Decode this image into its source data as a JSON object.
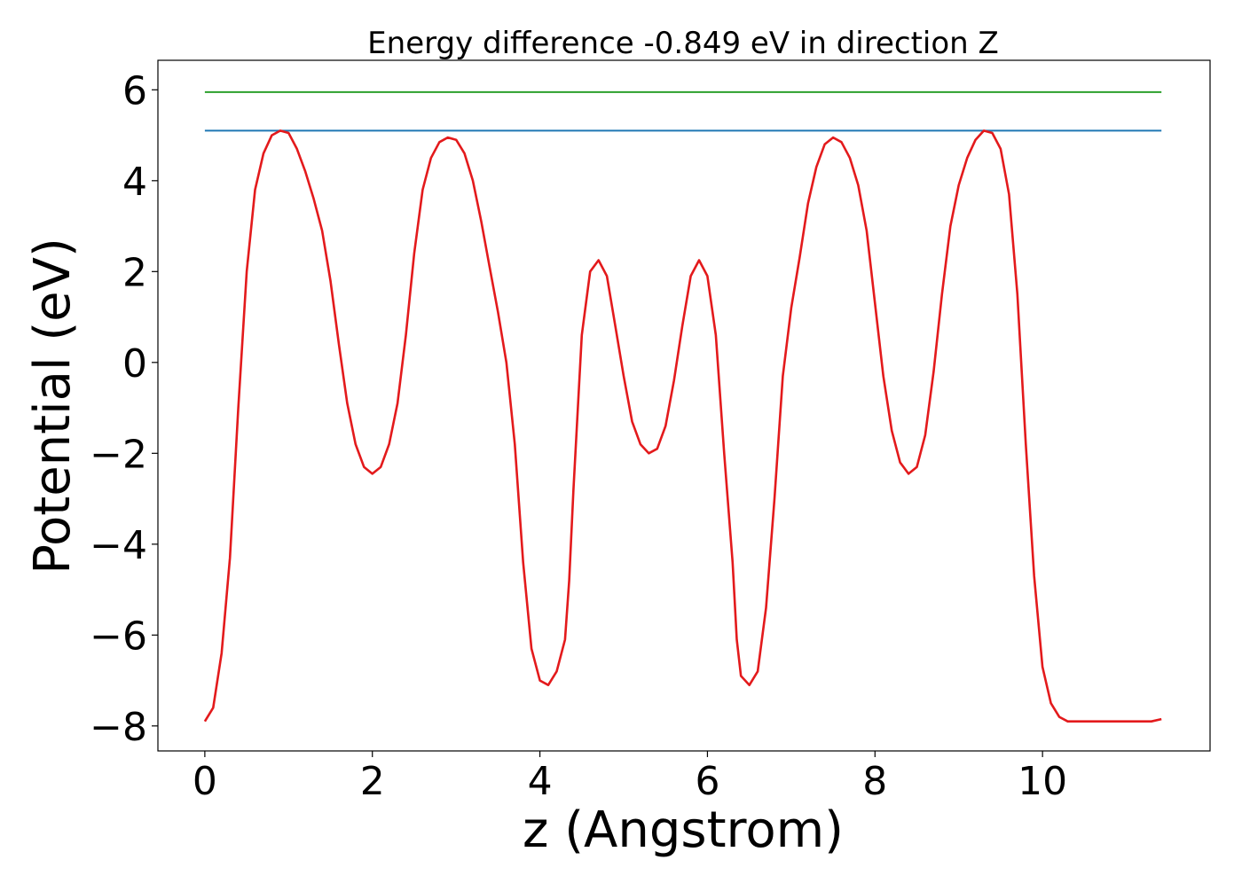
{
  "chart_data": {
    "type": "line",
    "title": "Energy difference -0.849 eV in direction Z",
    "xlabel": "z (Angstrom)",
    "ylabel": "Potential (eV)",
    "xlim": [
      -0.56,
      12.0
    ],
    "ylim": [
      -8.55,
      6.65
    ],
    "xticks": [
      0,
      2,
      4,
      6,
      8,
      10
    ],
    "yticks": [
      6,
      4,
      2,
      0,
      -2,
      -4,
      -6,
      -8
    ],
    "xtick_labels": [
      "0",
      "2",
      "4",
      "6",
      "8",
      "10"
    ],
    "ytick_labels": [
      "6",
      "4",
      "2",
      "0",
      "−2",
      "−4",
      "−6",
      "−8"
    ],
    "grid": false,
    "legend": "none",
    "series": [
      {
        "color": "#2ca02c",
        "x": [
          0.0,
          11.42
        ],
        "y": [
          5.95,
          5.95
        ]
      },
      {
        "color": "#1f77b4",
        "x": [
          0.0,
          11.42
        ],
        "y": [
          5.1,
          5.1
        ]
      },
      {
        "color": "#e31a1c",
        "x": [
          0.0,
          0.1,
          0.2,
          0.3,
          0.4,
          0.5,
          0.6,
          0.7,
          0.8,
          0.9,
          1.0,
          1.1,
          1.2,
          1.3,
          1.4,
          1.5,
          1.6,
          1.7,
          1.8,
          1.9,
          2.0,
          2.1,
          2.2,
          2.3,
          2.4,
          2.5,
          2.6,
          2.7,
          2.8,
          2.9,
          3.0,
          3.1,
          3.2,
          3.3,
          3.4,
          3.5,
          3.6,
          3.7,
          3.8,
          3.9,
          4.0,
          4.1,
          4.2,
          4.3,
          4.35,
          4.4,
          4.5,
          4.6,
          4.7,
          4.8,
          4.9,
          5.0,
          5.1,
          5.2,
          5.3,
          5.4,
          5.5,
          5.6,
          5.7,
          5.8,
          5.9,
          6.0,
          6.1,
          6.2,
          6.3,
          6.35,
          6.4,
          6.5,
          6.6,
          6.7,
          6.8,
          6.9,
          7.0,
          7.1,
          7.2,
          7.3,
          7.4,
          7.5,
          7.6,
          7.7,
          7.8,
          7.9,
          8.0,
          8.1,
          8.2,
          8.3,
          8.4,
          8.5,
          8.6,
          8.7,
          8.8,
          8.9,
          9.0,
          9.1,
          9.2,
          9.3,
          9.4,
          9.5,
          9.6,
          9.7,
          9.8,
          9.9,
          10.0,
          10.1,
          10.2,
          10.3,
          10.4,
          10.5,
          10.6,
          10.7,
          10.8,
          10.9,
          11.0,
          11.1,
          11.2,
          11.3,
          11.42
        ],
        "y": [
          -7.9,
          -7.6,
          -6.4,
          -4.3,
          -1.0,
          2.0,
          3.8,
          4.6,
          5.0,
          5.1,
          5.05,
          4.7,
          4.2,
          3.6,
          2.9,
          1.8,
          0.4,
          -0.9,
          -1.8,
          -2.3,
          -2.45,
          -2.3,
          -1.8,
          -0.9,
          0.6,
          2.4,
          3.8,
          4.5,
          4.85,
          4.95,
          4.9,
          4.6,
          4.0,
          3.1,
          2.1,
          1.1,
          0.0,
          -1.8,
          -4.4,
          -6.3,
          -7.0,
          -7.1,
          -6.8,
          -6.1,
          -4.8,
          -2.8,
          0.6,
          2.0,
          2.25,
          1.9,
          0.8,
          -0.3,
          -1.3,
          -1.8,
          -2.0,
          -1.9,
          -1.4,
          -0.4,
          0.8,
          1.9,
          2.25,
          1.9,
          0.6,
          -2.0,
          -4.4,
          -6.1,
          -6.9,
          -7.1,
          -6.8,
          -5.4,
          -3.0,
          -0.3,
          1.2,
          2.3,
          3.5,
          4.3,
          4.8,
          4.95,
          4.85,
          4.5,
          3.9,
          2.9,
          1.3,
          -0.3,
          -1.5,
          -2.2,
          -2.45,
          -2.3,
          -1.6,
          -0.2,
          1.5,
          3.0,
          3.9,
          4.5,
          4.9,
          5.1,
          5.05,
          4.7,
          3.7,
          1.5,
          -1.8,
          -4.7,
          -6.7,
          -7.5,
          -7.8,
          -7.9,
          -7.9,
          -7.9,
          -7.9,
          -7.9,
          -7.9,
          -7.9,
          -7.9,
          -7.9,
          -7.9,
          -7.9,
          -7.85
        ]
      }
    ]
  }
}
